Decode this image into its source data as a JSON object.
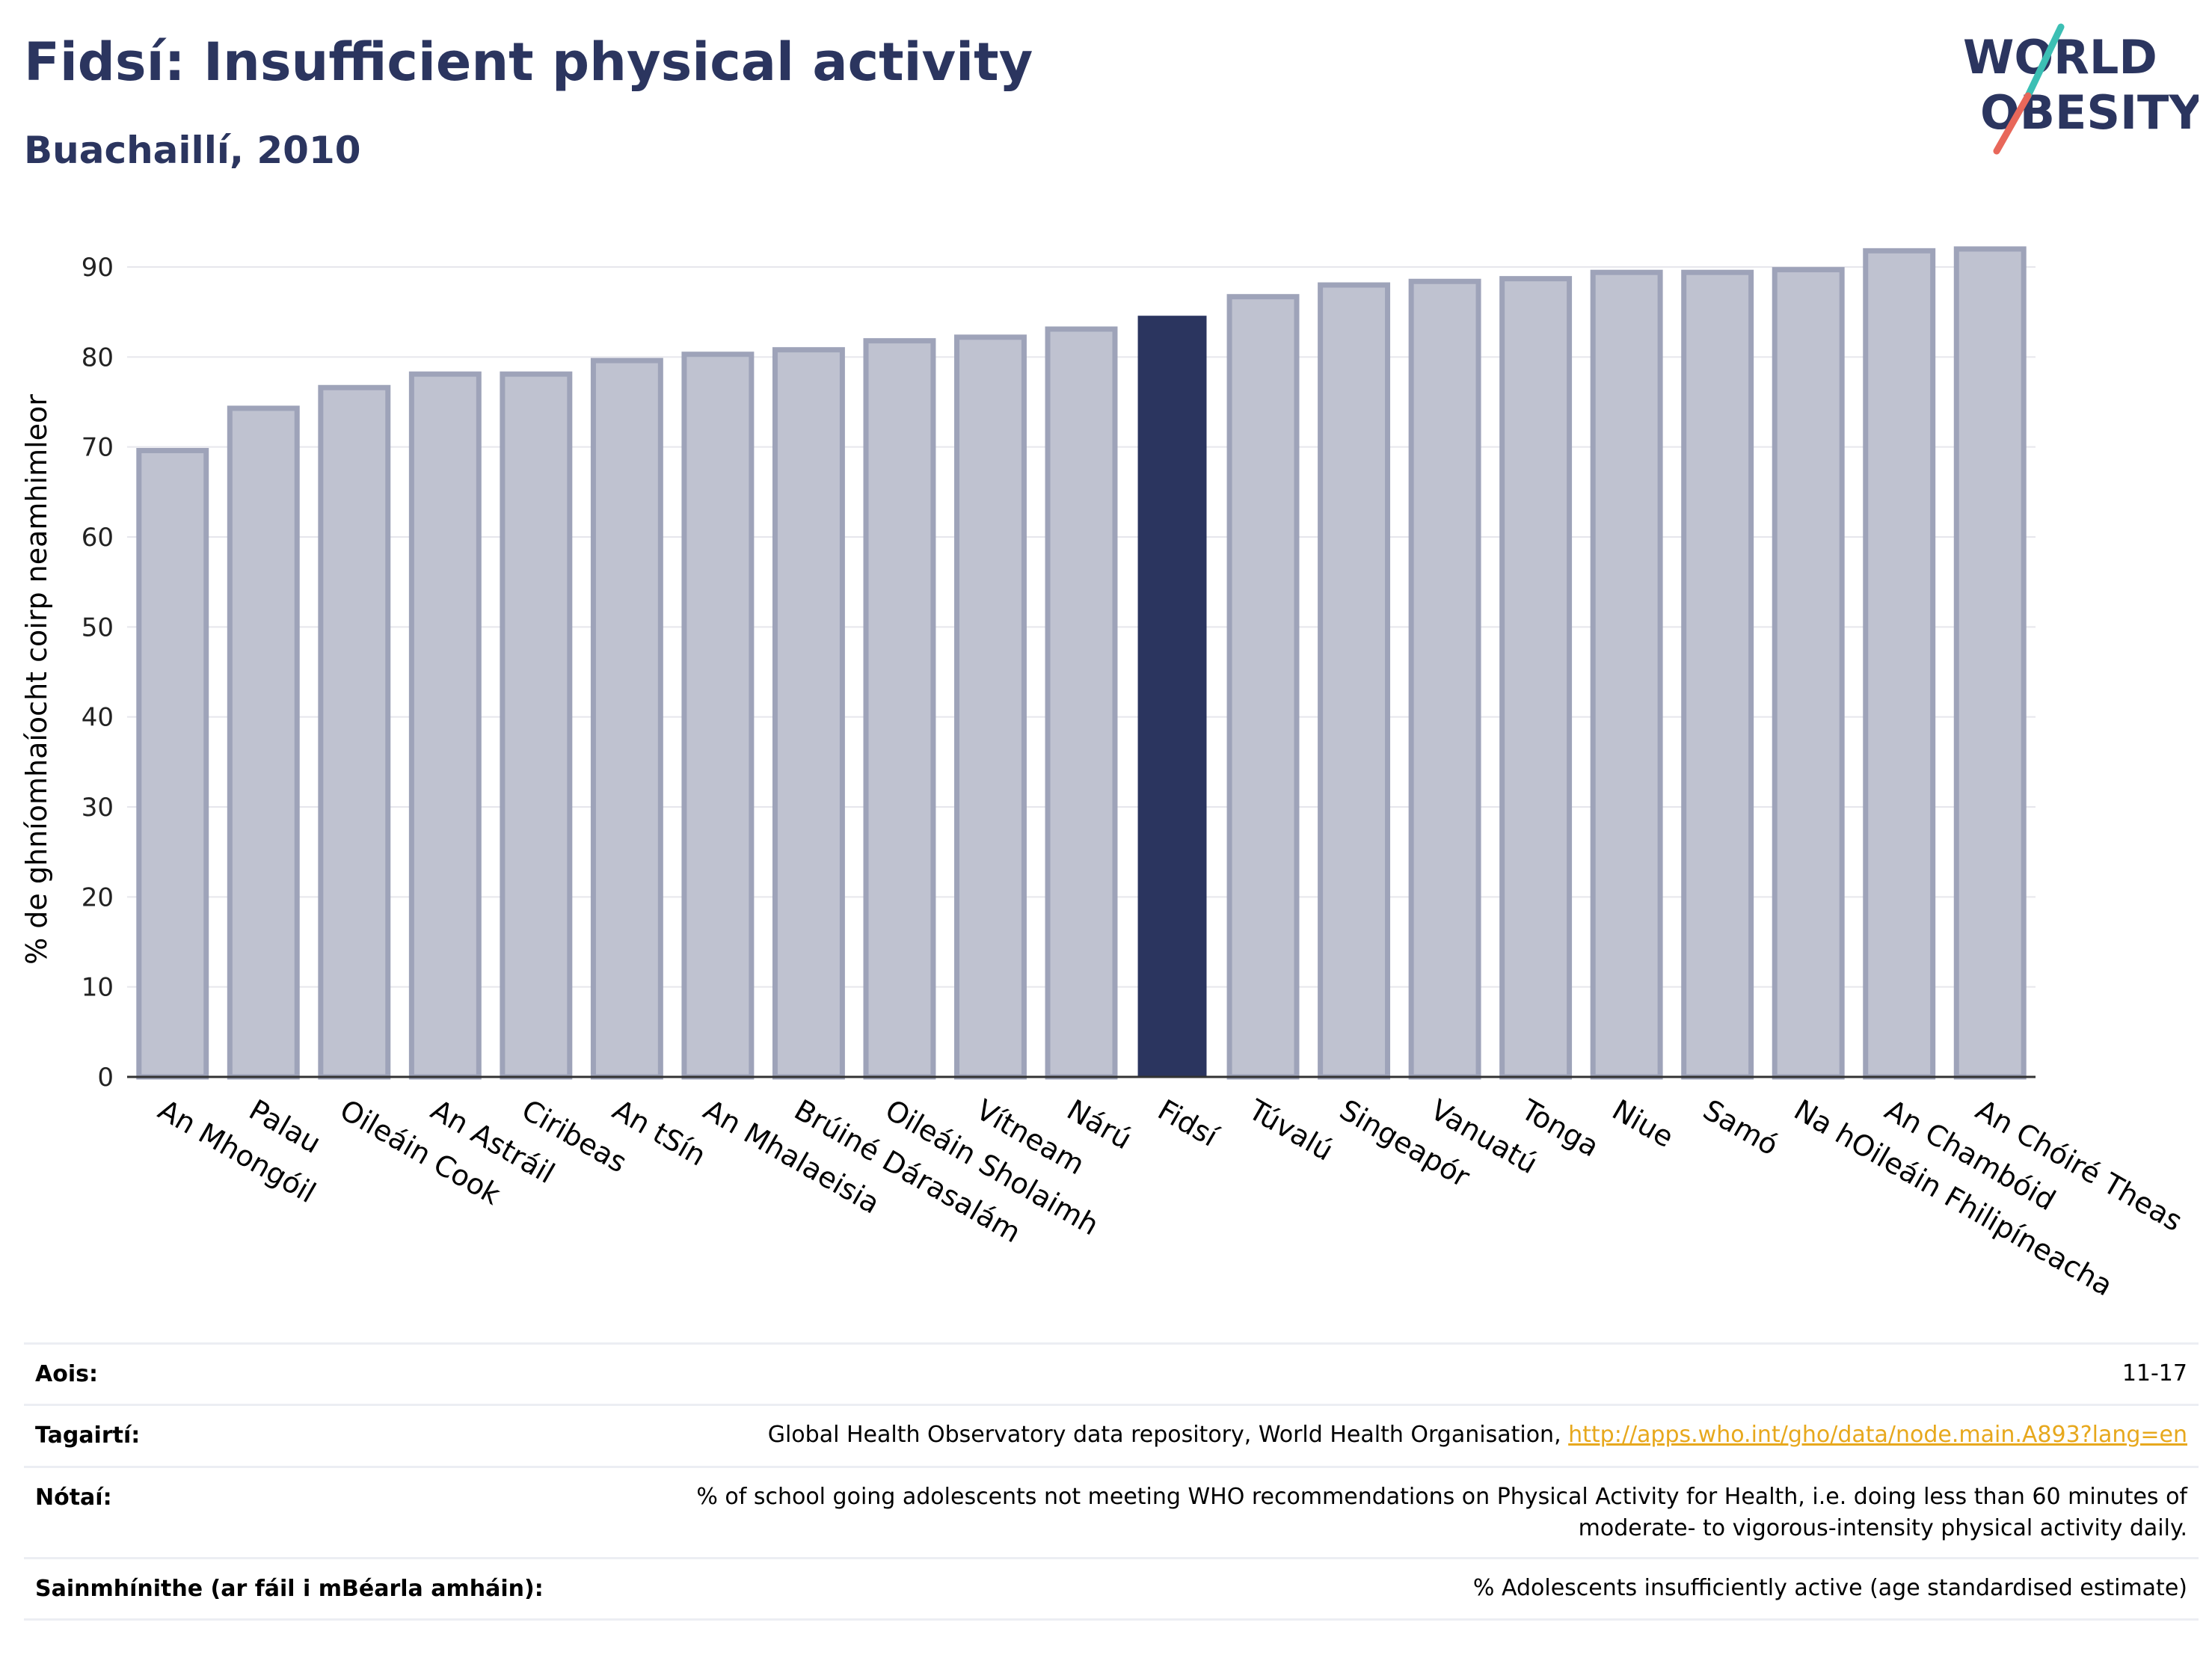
{
  "header": {
    "title": "Fidsí: Insufficient physical activity",
    "subtitle": "Buachaillí, 2010"
  },
  "logo": {
    "line1": "WORLD",
    "line2": "OBESITY",
    "colors": {
      "text": "#2b355f",
      "slash_teal": "#3cbfb4",
      "slash_red": "#e8675a"
    }
  },
  "colors": {
    "bar": "#bfc2d0",
    "bar_edge": "#9ea3b9",
    "highlight": "#2b355f",
    "grid": "#e6e6ec",
    "axis": "#333333"
  },
  "chart_data": {
    "type": "bar",
    "ylabel": "% de ghníomhaíocht coirp neamhimleor",
    "ylim": [
      0,
      90
    ],
    "yticks": [
      0,
      10,
      20,
      30,
      40,
      50,
      60,
      70,
      80,
      90
    ],
    "grid": true,
    "highlight": "Fidsí",
    "categories": [
      "An Mhongóil",
      "Palau",
      "Oileáin Cook",
      "An Astráil",
      "Ciribeas",
      "An tSín",
      "An Mhalaeisia",
      "Brúiné Dárasalám",
      "Oileáin Sholaimh",
      "Vítneam",
      "Nárú",
      "Fidsí",
      "Túvalú",
      "Singeapór",
      "Vanuatú",
      "Tonga",
      "Niue",
      "Samó",
      "Na hOileáin Fhilipíneacha",
      "An Chambóid",
      "An Chóiré Theas"
    ],
    "values": [
      69.6,
      74.3,
      76.6,
      78.1,
      78.1,
      79.6,
      80.3,
      80.8,
      81.8,
      82.2,
      83.1,
      84.5,
      86.7,
      88.0,
      88.4,
      88.7,
      89.4,
      89.4,
      89.7,
      91.8,
      92.0
    ]
  },
  "metadata": {
    "rows": [
      {
        "label": "Aois:",
        "value": "11-17"
      },
      {
        "label": "Tagairtí:",
        "value": "Global Health Observatory data repository, World Health Organisation, ",
        "link": "http://apps.who.int/gho/data/node.main.A893?lang=en"
      },
      {
        "label": "Nótaí:",
        "value": "% of school going adolescents not meeting WHO recommendations on Physical Activity for Health, i.e. doing less than 60 minutes of moderate- to vigorous-intensity physical activity daily."
      },
      {
        "label": "Sainmhínithe (ar fáil i mBéarla amháin):",
        "value": "% Adolescents insufficiently active (age standardised estimate)"
      }
    ]
  }
}
